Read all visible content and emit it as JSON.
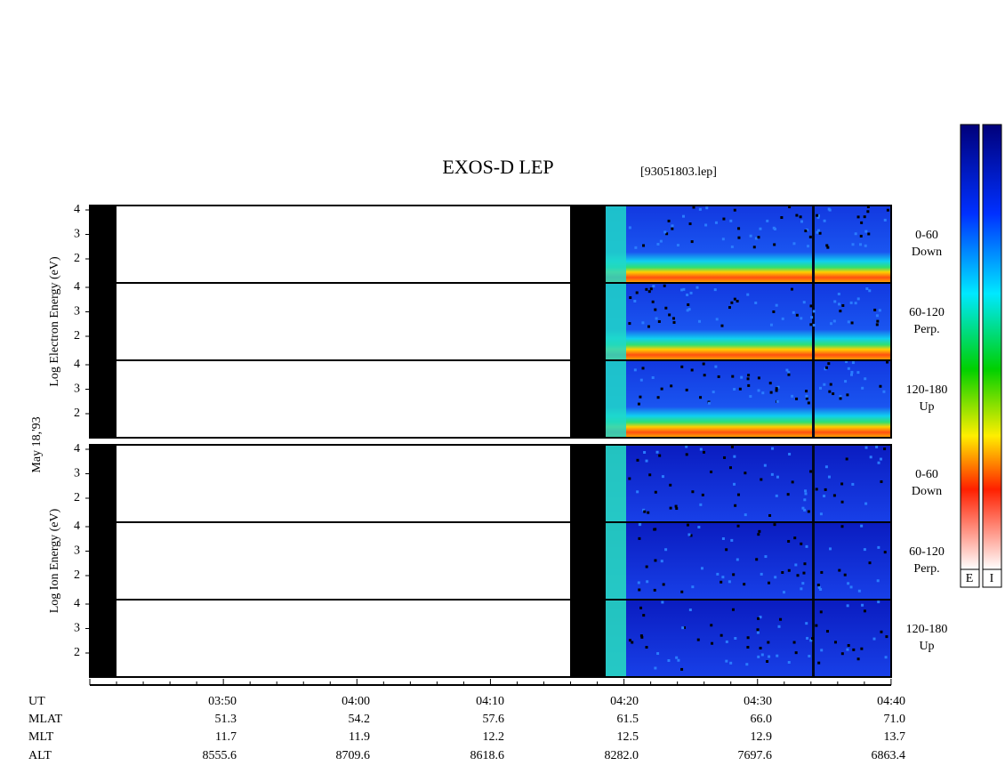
{
  "header": {
    "title": "EXOS-D LEP",
    "file": "[93051803.lep]"
  },
  "date": "May 18,'93",
  "panels": [
    {
      "ylabel": "Log  Electron  Energy (eV)",
      "subpanels": [
        {
          "angle": "0-60",
          "direction": "Down",
          "yticks": [
            4,
            3,
            2
          ]
        },
        {
          "angle": "60-120",
          "direction": "Perp.",
          "yticks": [
            4,
            3,
            2
          ]
        },
        {
          "angle": "120-180",
          "direction": "Up",
          "yticks": [
            4,
            3,
            2
          ]
        }
      ]
    },
    {
      "ylabel": "Log  Ion  Energy (eV)",
      "subpanels": [
        {
          "angle": "0-60",
          "direction": "Down",
          "yticks": [
            4,
            3,
            2
          ]
        },
        {
          "angle": "60-120",
          "direction": "Perp.",
          "yticks": [
            4,
            3,
            2
          ]
        },
        {
          "angle": "120-180",
          "direction": "Up",
          "yticks": [
            4,
            3,
            2
          ]
        }
      ]
    }
  ],
  "axis": {
    "rows": [
      {
        "name": "UT",
        "values": [
          "03:50",
          "04:00",
          "04:10",
          "04:20",
          "04:30",
          "04:40"
        ]
      },
      {
        "name": "MLAT",
        "values": [
          "51.3",
          "54.2",
          "57.6",
          "61.5",
          "66.0",
          "71.0"
        ]
      },
      {
        "name": "MLT",
        "values": [
          "11.7",
          "11.9",
          "12.2",
          "12.5",
          "12.9",
          "13.7"
        ]
      },
      {
        "name": "ALT",
        "values": [
          "8555.6",
          "8709.6",
          "8618.6",
          "8282.0",
          "7697.6",
          "6863.4"
        ]
      }
    ]
  },
  "colorbar": {
    "labels": [
      "E",
      "I"
    ]
  }
}
